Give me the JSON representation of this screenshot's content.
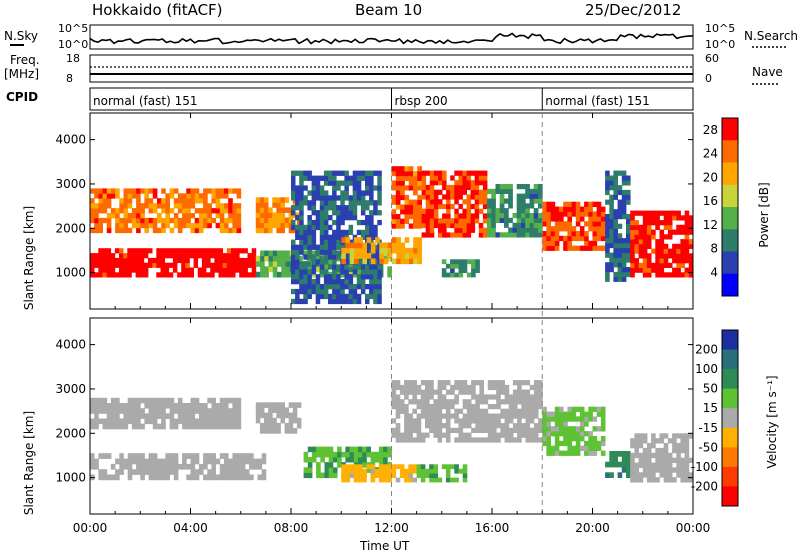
{
  "header": {
    "title": "Hokkaido (fitACF)",
    "beam": "Beam 10",
    "date": "25/Dec/2012"
  },
  "noise_panel": {
    "left_label": "N.Sky",
    "right_label": "N.Search",
    "left_ticks": [
      "10^5",
      "10^0"
    ],
    "right_ticks": [
      "10^5",
      "10^0"
    ]
  },
  "freq_panel": {
    "left_label_line1": "Freq.",
    "left_label_line2": "[MHz]",
    "right_label": "Nave",
    "left_ticks": [
      "18",
      "8"
    ],
    "right_ticks": [
      "60",
      "0"
    ]
  },
  "cpid": {
    "label": "CPID",
    "segments": [
      {
        "label": "normal (fast) 151",
        "start": 0,
        "end": 12
      },
      {
        "label": "rbsp 200",
        "start": 12,
        "end": 18
      },
      {
        "label": "normal (fast) 151",
        "start": 18,
        "end": 24
      }
    ]
  },
  "time_axis": {
    "label": "Time UT",
    "tick_labels": [
      "00:00",
      "04:00",
      "08:00",
      "12:00",
      "16:00",
      "20:00",
      "00:00"
    ],
    "range_hours": [
      0,
      24
    ]
  },
  "range_axis": {
    "label": "Slant Range [km]",
    "tick_labels": [
      "1000",
      "2000",
      "3000",
      "4000"
    ],
    "range_km": [
      180,
      4600
    ]
  },
  "power_colorbar": {
    "label": "Power [dB]",
    "tick_labels": [
      "28",
      "24",
      "20",
      "16",
      "12",
      "8",
      "4"
    ],
    "range": [
      0,
      30
    ],
    "colors": [
      "#0000ff",
      "#2a3fb0",
      "#2e7d6a",
      "#53b04a",
      "#c8d43a",
      "#ffa500",
      "#ff6a00",
      "#ff0000"
    ]
  },
  "velocity_colorbar": {
    "label": "Velocity [m s⁻¹]",
    "tick_labels": [
      "200",
      "100",
      "50",
      "15",
      "-15",
      "-50",
      "-100",
      "-200"
    ],
    "colors": [
      "#1b2fa0",
      "#2a6f7a",
      "#2e8b57",
      "#5ec234",
      "#aaaaaa",
      "#ffb000",
      "#ff7a00",
      "#ff3a00",
      "#ff0000"
    ]
  },
  "chart_data": {
    "type": "heatmap",
    "x_unit": "hours UT",
    "y_unit": "km",
    "power_regions": [
      {
        "t0": 0.0,
        "t1": 6.6,
        "r0": 900,
        "r1": 1550,
        "level": 29
      },
      {
        "t0": 0.0,
        "t1": 6.0,
        "r0": 1900,
        "r1": 2900,
        "level": 24
      },
      {
        "t0": 6.6,
        "t1": 8.4,
        "r0": 1900,
        "r1": 2700,
        "level": 23
      },
      {
        "t0": 6.6,
        "t1": 12.0,
        "r0": 900,
        "r1": 1500,
        "level": 13
      },
      {
        "t0": 8.0,
        "t1": 11.6,
        "r0": 300,
        "r1": 3300,
        "level": 7
      },
      {
        "t0": 10.0,
        "t1": 13.2,
        "r0": 1200,
        "r1": 1800,
        "level": 21
      },
      {
        "t0": 12.0,
        "t1": 13.2,
        "r0": 2000,
        "r1": 3400,
        "level": 25
      },
      {
        "t0": 13.2,
        "t1": 15.8,
        "r0": 1800,
        "r1": 3300,
        "level": 27
      },
      {
        "t0": 15.8,
        "t1": 18.0,
        "r0": 1800,
        "r1": 3000,
        "level": 10
      },
      {
        "t0": 14.0,
        "t1": 15.5,
        "r0": 900,
        "r1": 1300,
        "level": 10
      },
      {
        "t0": 18.0,
        "t1": 20.5,
        "r0": 1500,
        "r1": 2600,
        "level": 26
      },
      {
        "t0": 20.5,
        "t1": 21.5,
        "r0": 800,
        "r1": 3300,
        "level": 8
      },
      {
        "t0": 21.5,
        "t1": 24.0,
        "r0": 900,
        "r1": 2400,
        "level": 28
      }
    ],
    "velocity_regions": [
      {
        "t0": 0.0,
        "t1": 7.0,
        "r0": 950,
        "r1": 1550,
        "v": 0
      },
      {
        "t0": 0.0,
        "t1": 6.0,
        "r0": 2100,
        "r1": 2800,
        "v": 0
      },
      {
        "t0": 6.6,
        "t1": 8.4,
        "r0": 2000,
        "r1": 2700,
        "v": 0
      },
      {
        "t0": 8.5,
        "t1": 12.0,
        "r0": 1000,
        "r1": 1700,
        "v": 30
      },
      {
        "t0": 10.0,
        "t1": 13.0,
        "r0": 900,
        "r1": 1300,
        "v": -40
      },
      {
        "t0": 12.0,
        "t1": 18.0,
        "r0": 1800,
        "r1": 3200,
        "v": 0
      },
      {
        "t0": 13.0,
        "t1": 15.0,
        "r0": 900,
        "r1": 1300,
        "v": 25
      },
      {
        "t0": 18.0,
        "t1": 20.5,
        "r0": 1500,
        "r1": 2600,
        "v": 20
      },
      {
        "t0": 20.5,
        "t1": 21.5,
        "r0": 1000,
        "r1": 1600,
        "v": 70
      },
      {
        "t0": 21.5,
        "t1": 24.0,
        "r0": 900,
        "r1": 2000,
        "v": 0
      }
    ]
  }
}
